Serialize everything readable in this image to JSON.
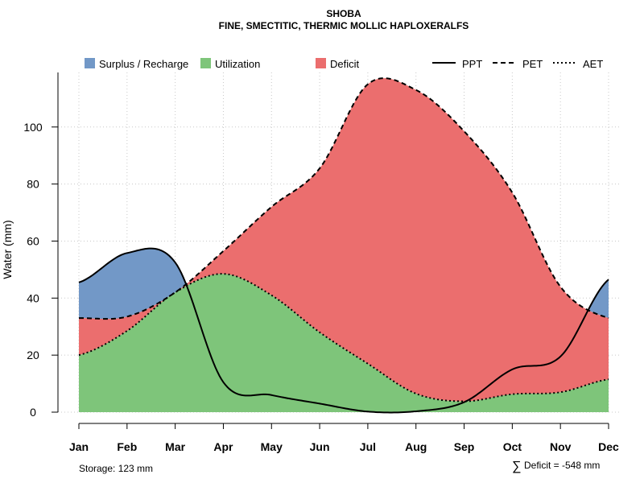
{
  "chart_data": {
    "type": "area",
    "title": "SHOBA",
    "subtitle": "FINE, SMECTITIC, THERMIC MOLLIC HAPLOXERALFS",
    "xlabel": "",
    "ylabel": "Water (mm)",
    "ylim": [
      0,
      118
    ],
    "yticks": [
      0,
      20,
      40,
      60,
      80,
      100
    ],
    "grid": true,
    "legend_position": "top",
    "categories": [
      "Jan",
      "Feb",
      "Mar",
      "Apr",
      "May",
      "Jun",
      "Jul",
      "Aug",
      "Sep",
      "Oct",
      "Nov",
      "Dec"
    ],
    "series": [
      {
        "name": "PPT",
        "style": "solid",
        "values": [
          45.5,
          55.8,
          52.5,
          10.5,
          6.0,
          3.0,
          0.2,
          0.3,
          3.5,
          15.0,
          19.5,
          46.5
        ]
      },
      {
        "name": "PET",
        "style": "dashed",
        "values": [
          33.0,
          33.5,
          42.0,
          56.5,
          72.0,
          85.5,
          115.0,
          113.0,
          98.5,
          77.0,
          44.0,
          33.0
        ]
      },
      {
        "name": "AET",
        "style": "dotted",
        "values": [
          20.0,
          28.5,
          42.0,
          48.5,
          41.0,
          28.0,
          17.0,
          6.5,
          3.8,
          6.3,
          7.0,
          11.5
        ]
      }
    ],
    "fill_areas": [
      {
        "name": "Surplus / Recharge",
        "color": "#7298c7",
        "between": [
          "PET",
          "PPT"
        ]
      },
      {
        "name": "Utilization",
        "color": "#7ec57a",
        "between": [
          "zero",
          "AET"
        ]
      },
      {
        "name": "Deficit",
        "color": "#eb6e6e",
        "between": [
          "AET",
          "PET"
        ]
      }
    ],
    "legend": {
      "fills": [
        {
          "label": "Surplus / Recharge",
          "color": "#7298c7"
        },
        {
          "label": "Utilization",
          "color": "#7ec57a"
        },
        {
          "label": "Deficit",
          "color": "#eb6e6e"
        }
      ],
      "lines": [
        {
          "label": "PPT",
          "style": "solid"
        },
        {
          "label": "PET",
          "style": "dashed"
        },
        {
          "label": "AET",
          "style": "dotted"
        }
      ]
    },
    "annotations": {
      "storage": "Storage: 123 mm",
      "deficit_symbol": "∑",
      "deficit": "Deficit = -548 mm"
    }
  }
}
